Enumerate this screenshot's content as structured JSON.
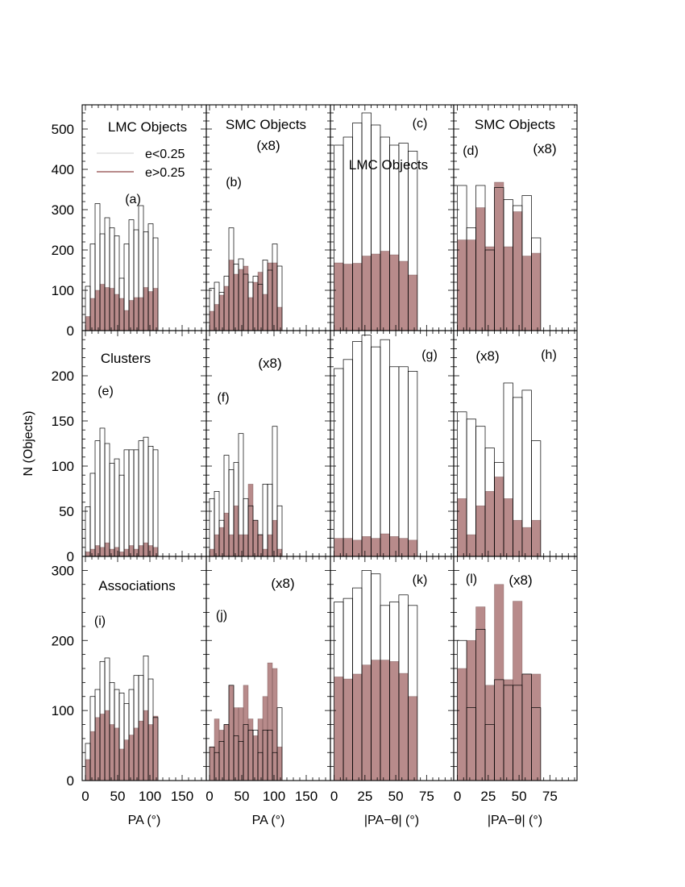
{
  "figure": {
    "ylabel": "N (Objects)",
    "legend": [
      {
        "label": "e<0.25",
        "style": "outline"
      },
      {
        "label": "e>0.25",
        "style": "filled"
      }
    ]
  },
  "colors": {
    "filled": "#b88b8b",
    "outline": "#000000"
  },
  "chart_data": [
    {
      "id": "a",
      "type": "bar",
      "label": "(a)",
      "texts": [
        "LMC Objects"
      ],
      "x_ticks": [
        0,
        50,
        100,
        150
      ],
      "xlim": [
        -5,
        187.5
      ],
      "ylim": [
        0,
        560
      ],
      "y_ticks": [
        0,
        100,
        200,
        300,
        400,
        500
      ],
      "bin_width": 7.5,
      "series": [
        {
          "name": "e<0.25",
          "values": [
            110,
            215,
            315,
            240,
            280,
            255,
            235,
            130,
            215,
            275,
            250,
            310,
            245,
            265,
            230
          ]
        },
        {
          "name": "e>0.25",
          "values": [
            35,
            80,
            100,
            115,
            107,
            105,
            90,
            80,
            50,
            75,
            82,
            82,
            107,
            97,
            105
          ]
        }
      ]
    },
    {
      "id": "b",
      "type": "bar",
      "label": "(b)",
      "texts": [
        "SMC Objects",
        "(x8)"
      ],
      "x_ticks": [
        0,
        50,
        100,
        150
      ],
      "xlim": [
        -5,
        187.5
      ],
      "ylim": [
        0,
        560
      ],
      "y_ticks": [
        0,
        100,
        200,
        300,
        400,
        500
      ],
      "bin_width": 7.5,
      "series": [
        {
          "name": "e<0.25",
          "values": [
            105,
            120,
            95,
            135,
            255,
            165,
            178,
            140,
            120,
            135,
            115,
            175,
            150,
            215,
            160
          ]
        },
        {
          "name": "e>0.25",
          "values": [
            48,
            65,
            88,
            110,
            175,
            140,
            152,
            160,
            82,
            120,
            145,
            90,
            168,
            168,
            58
          ]
        }
      ]
    },
    {
      "id": "c",
      "type": "bar",
      "label": "(c)",
      "texts": [
        "LMC Objects"
      ],
      "x_ticks": [
        0,
        25,
        50,
        75
      ],
      "xlim": [
        -3,
        97
      ],
      "ylim": [
        0,
        560
      ],
      "y_ticks": [
        0,
        100,
        200,
        300,
        400,
        500
      ],
      "bin_width": 7.5,
      "series": [
        {
          "name": "e<0.25",
          "values": [
            460,
            480,
            515,
            540,
            510,
            480,
            460,
            465,
            445
          ]
        },
        {
          "name": "e>0.25",
          "values": [
            168,
            165,
            167,
            185,
            190,
            197,
            188,
            172,
            138
          ]
        }
      ]
    },
    {
      "id": "d",
      "type": "bar",
      "label": "(d)",
      "texts": [
        "SMC Objects",
        "(x8)"
      ],
      "x_ticks": [
        0,
        25,
        50,
        75
      ],
      "xlim": [
        -3,
        97
      ],
      "ylim": [
        0,
        560
      ],
      "y_ticks": [
        0,
        100,
        200,
        300,
        400,
        500
      ],
      "bin_width": 7.5,
      "series": [
        {
          "name": "e<0.25",
          "values": [
            360,
            255,
            360,
            200,
            355,
            325,
            310,
            335,
            230
          ]
        },
        {
          "name": "e>0.25",
          "values": [
            225,
            225,
            305,
            208,
            368,
            208,
            295,
            185,
            192
          ]
        }
      ]
    },
    {
      "id": "e",
      "type": "bar",
      "label": "(e)",
      "texts": [
        "Clusters"
      ],
      "x_ticks": [
        0,
        50,
        100,
        150
      ],
      "xlim": [
        -5,
        187.5
      ],
      "ylim": [
        0,
        250
      ],
      "y_ticks": [
        0,
        50,
        100,
        150,
        200
      ],
      "bin_width": 7.5,
      "series": [
        {
          "name": "e<0.25",
          "values": [
            55,
            92,
            128,
            142,
            125,
            103,
            108,
            90,
            118,
            118,
            118,
            128,
            132,
            122,
            118
          ]
        },
        {
          "name": "e>0.25",
          "values": [
            5,
            8,
            12,
            10,
            15,
            8,
            10,
            5,
            8,
            12,
            8,
            12,
            15,
            12,
            10
          ]
        }
      ]
    },
    {
      "id": "f",
      "type": "bar",
      "label": "(f)",
      "texts": [
        "(x8)"
      ],
      "x_ticks": [
        0,
        50,
        100,
        150
      ],
      "xlim": [
        -5,
        187.5
      ],
      "ylim": [
        0,
        250
      ],
      "y_ticks": [
        0,
        50,
        100,
        150,
        200
      ],
      "bin_width": 7.5,
      "series": [
        {
          "name": "e<0.25",
          "values": [
            64,
            72,
            40,
            112,
            96,
            104,
            136,
            64,
            56,
            40,
            24,
            80,
            80,
            144,
            56
          ]
        },
        {
          "name": "e>0.25",
          "values": [
            8,
            24,
            32,
            48,
            24,
            56,
            24,
            24,
            80,
            40,
            24,
            8,
            24,
            40,
            8
          ]
        }
      ]
    },
    {
      "id": "g",
      "type": "bar",
      "label": "(g)",
      "texts": [],
      "x_ticks": [
        0,
        25,
        50,
        75
      ],
      "xlim": [
        -3,
        97
      ],
      "ylim": [
        0,
        250
      ],
      "y_ticks": [
        0,
        50,
        100,
        150,
        200
      ],
      "bin_width": 7.5,
      "series": [
        {
          "name": "e<0.25",
          "values": [
            208,
            218,
            238,
            245,
            232,
            240,
            210,
            210,
            205
          ]
        },
        {
          "name": "e>0.25",
          "values": [
            20,
            20,
            18,
            22,
            20,
            25,
            22,
            20,
            18
          ]
        }
      ]
    },
    {
      "id": "h",
      "type": "bar",
      "label": "(h)",
      "texts": [
        "(x8)"
      ],
      "x_ticks": [
        0,
        25,
        50,
        75
      ],
      "xlim": [
        -3,
        97
      ],
      "ylim": [
        0,
        250
      ],
      "y_ticks": [
        0,
        50,
        100,
        150,
        200
      ],
      "bin_width": 7.5,
      "series": [
        {
          "name": "e<0.25",
          "values": [
            160,
            152,
            144,
            120,
            104,
            192,
            176,
            184,
            128
          ]
        },
        {
          "name": "e>0.25",
          "values": [
            64,
            24,
            56,
            72,
            88,
            64,
            40,
            32,
            40
          ]
        }
      ]
    },
    {
      "id": "i",
      "type": "bar",
      "label": "(i)",
      "texts": [
        "Associations"
      ],
      "x_ticks": [
        0,
        50,
        100,
        150
      ],
      "xlim": [
        -5,
        187.5
      ],
      "ylim": [
        0,
        320
      ],
      "y_ticks": [
        0,
        100,
        200,
        300
      ],
      "bin_width": 7.5,
      "series": [
        {
          "name": "e<0.25",
          "values": [
            53,
            120,
            130,
            170,
            175,
            140,
            130,
            125,
            110,
            130,
            150,
            150,
            178,
            145,
            90
          ]
        },
        {
          "name": "e>0.25",
          "values": [
            30,
            70,
            90,
            95,
            100,
            80,
            75,
            45,
            58,
            65,
            75,
            85,
            100,
            80,
            92
          ]
        }
      ]
    },
    {
      "id": "j",
      "type": "bar",
      "label": "(j)",
      "texts": [
        "(x8)"
      ],
      "x_ticks": [
        0,
        50,
        100,
        150
      ],
      "xlim": [
        -5,
        187.5
      ],
      "ylim": [
        0,
        320
      ],
      "y_ticks": [
        0,
        100,
        200,
        300
      ],
      "bin_width": 7.5,
      "series": [
        {
          "name": "e<0.25",
          "values": [
            48,
            40,
            56,
            80,
            136,
            64,
            56,
            80,
            72,
            72,
            40,
            72,
            72,
            40,
            104
          ]
        },
        {
          "name": "e>0.25",
          "values": [
            48,
            88,
            72,
            80,
            136,
            104,
            104,
            136,
            88,
            64,
            88,
            120,
            168,
            160,
            48
          ]
        }
      ]
    },
    {
      "id": "k",
      "type": "bar",
      "label": "(k)",
      "texts": [],
      "x_ticks": [
        0,
        25,
        50,
        75
      ],
      "xlim": [
        -3,
        97
      ],
      "ylim": [
        0,
        320
      ],
      "y_ticks": [
        0,
        100,
        200,
        300
      ],
      "bin_width": 7.5,
      "series": [
        {
          "name": "e<0.25",
          "values": [
            255,
            260,
            275,
            300,
            295,
            250,
            255,
            265,
            250
          ]
        },
        {
          "name": "e>0.25",
          "values": [
            148,
            145,
            152,
            165,
            172,
            172,
            170,
            153,
            120
          ]
        }
      ]
    },
    {
      "id": "l",
      "type": "bar",
      "label": "(l)",
      "texts": [
        "(x8)"
      ],
      "x_ticks": [
        0,
        25,
        50,
        75
      ],
      "xlim": [
        -3,
        97
      ],
      "ylim": [
        0,
        320
      ],
      "y_ticks": [
        0,
        100,
        200,
        300
      ],
      "bin_width": 7.5,
      "series": [
        {
          "name": "e<0.25",
          "values": [
            200,
            104,
            216,
            80,
            144,
            136,
            136,
            152,
            104
          ]
        },
        {
          "name": "e>0.25",
          "values": [
            160,
            200,
            248,
            136,
            280,
            144,
            256,
            152,
            152
          ]
        }
      ]
    }
  ],
  "xlabels": [
    "PA (°)",
    "PA (°)",
    "|PA−θ| (°)",
    "|PA−θ| (°)"
  ]
}
